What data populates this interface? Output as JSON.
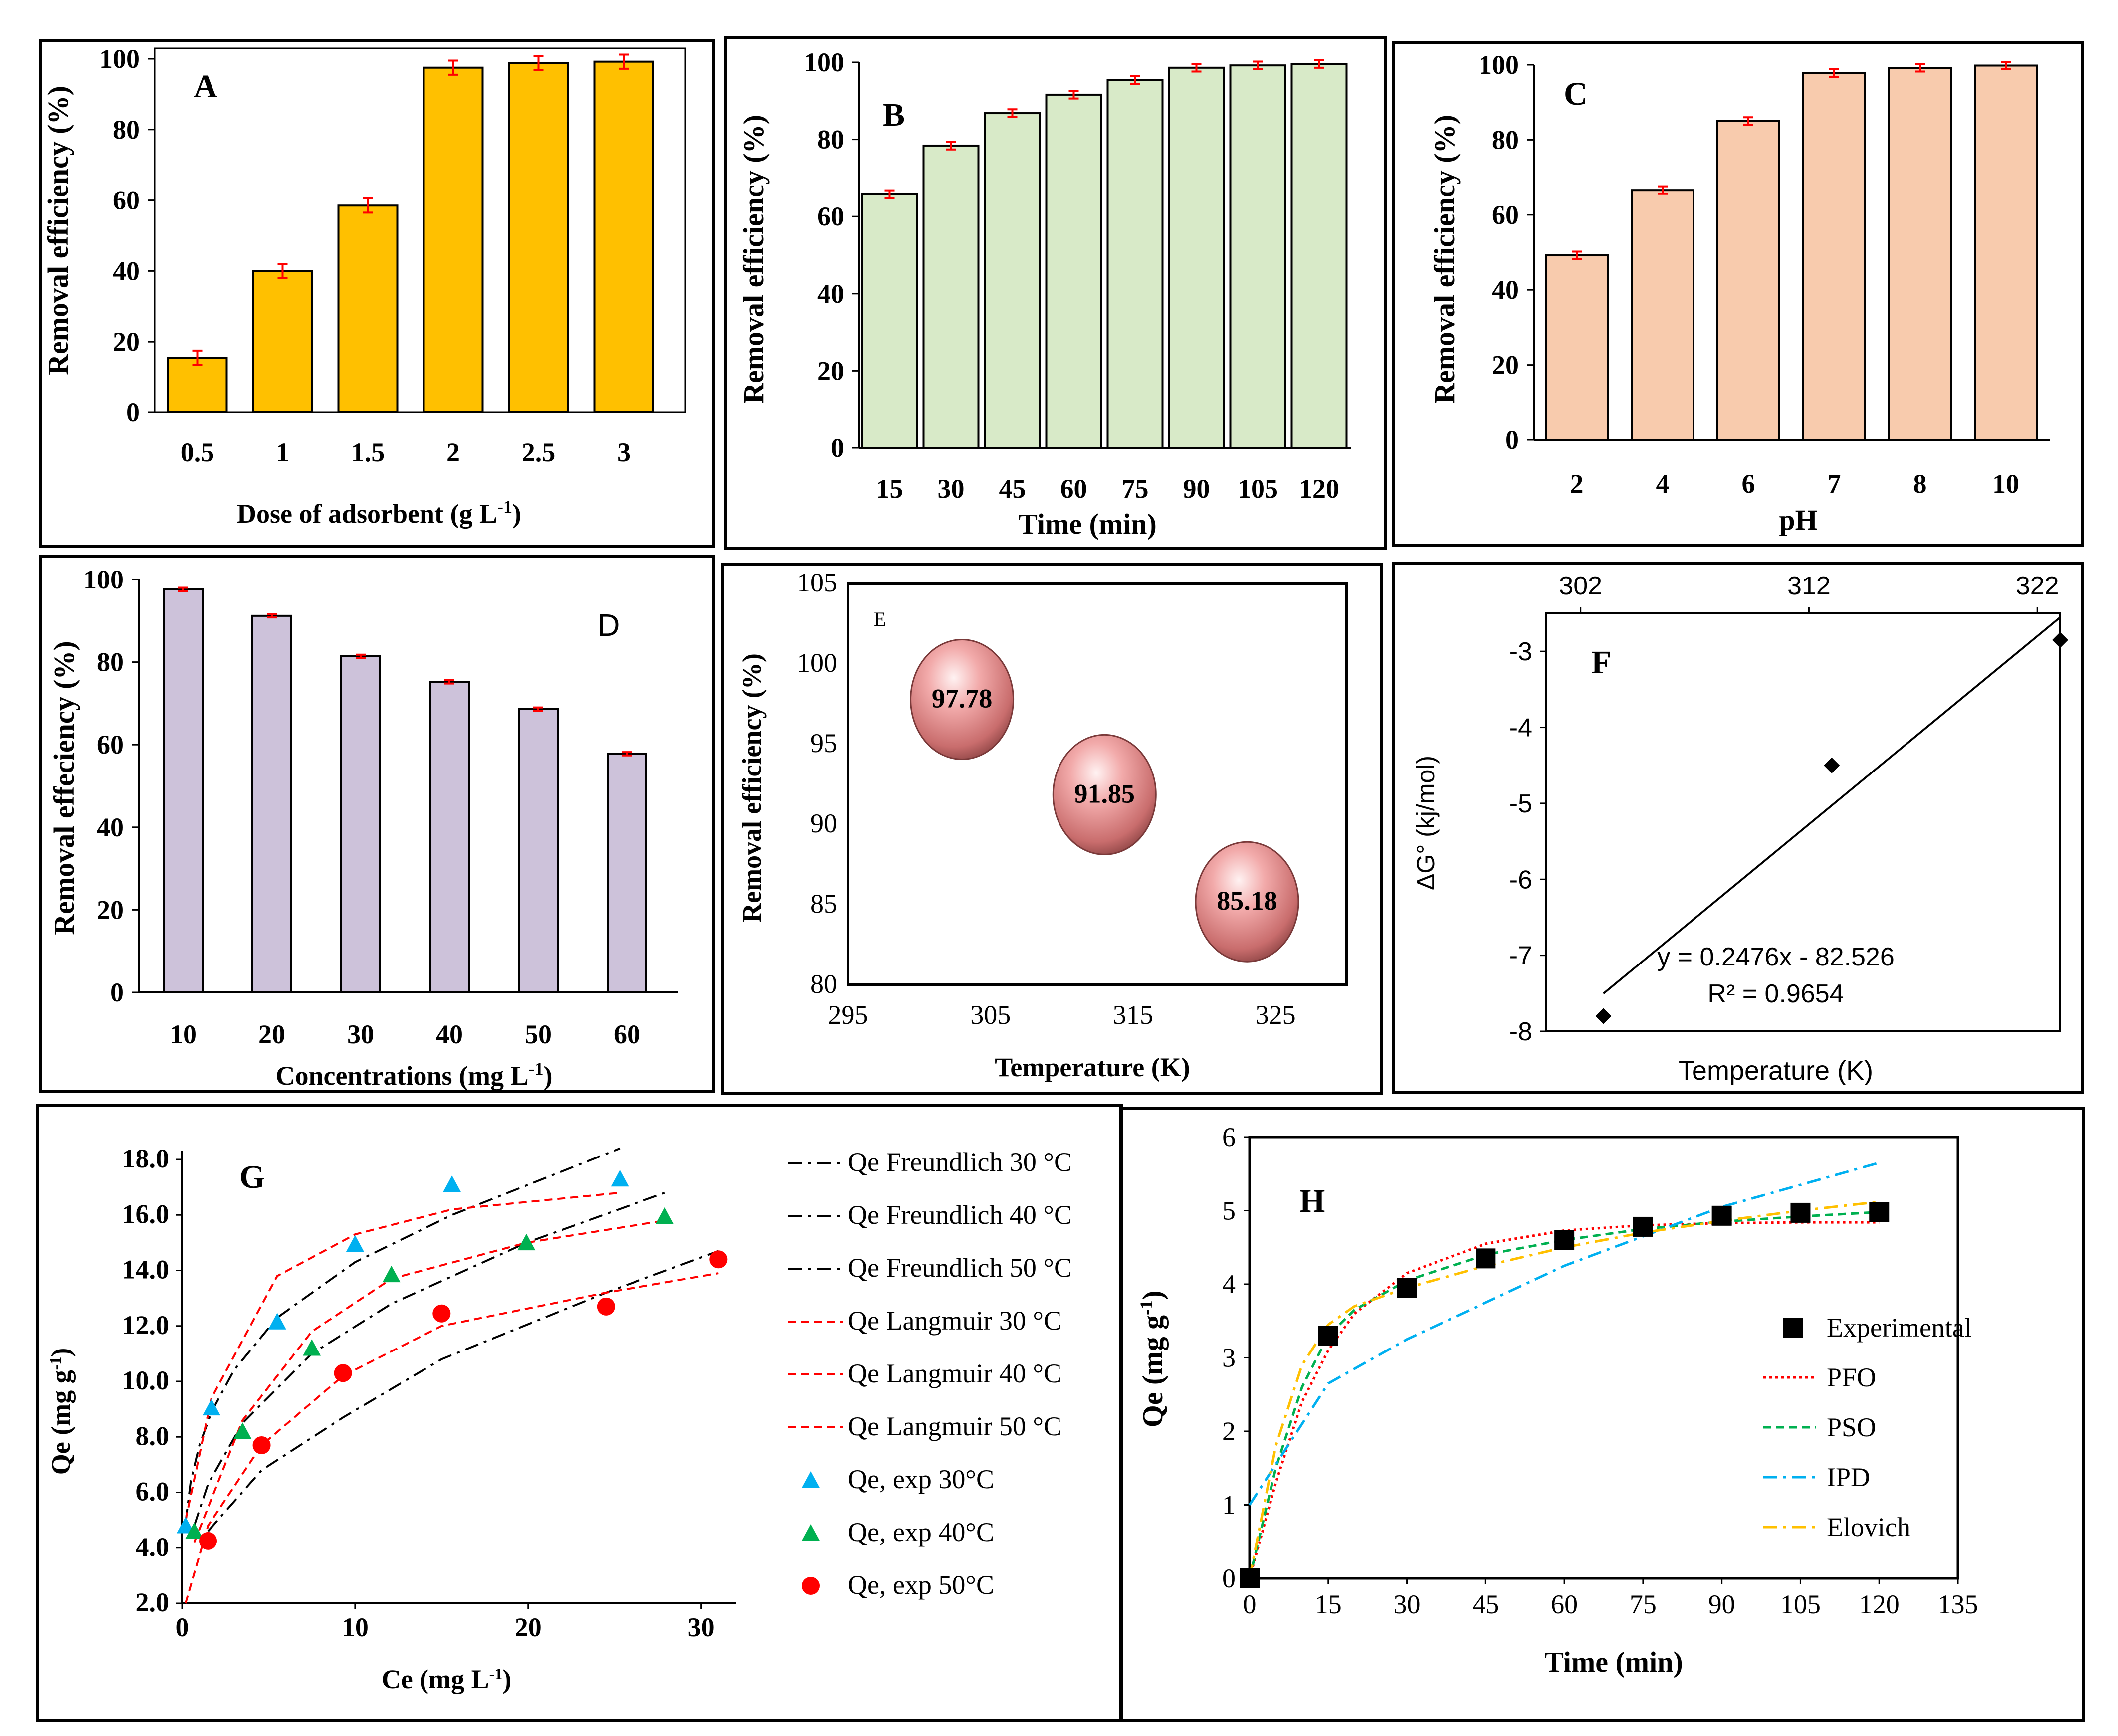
{
  "chart_data": [
    {
      "panel": "A",
      "type": "bar",
      "categories": [
        "0.5",
        "1",
        "1.5",
        "2",
        "2.5",
        "3"
      ],
      "values": [
        15.5,
        40,
        58.5,
        97.5,
        98.8,
        99.2
      ],
      "errors": [
        2,
        2,
        2,
        2,
        2,
        2
      ],
      "xlabel": "Dose of adsorbent (g L",
      "xlabel_sup": "-1",
      "xlabel_end": ")",
      "ylabel": "Removal efficiency (%)",
      "ylim": [
        0,
        100
      ],
      "yticks": [
        "0",
        "20",
        "40",
        "60",
        "80",
        "100"
      ],
      "color": "#FFC000"
    },
    {
      "panel": "B",
      "type": "bar",
      "categories": [
        "15",
        "30",
        "45",
        "60",
        "75",
        "90",
        "105",
        "120"
      ],
      "values": [
        65.8,
        78.4,
        86.8,
        91.6,
        95.4,
        98.6,
        99.2,
        99.6
      ],
      "errors": [
        1,
        1,
        1,
        1,
        1,
        1,
        1,
        1
      ],
      "xlabel": "Time (min)",
      "ylabel": "Removal efficiency (%)",
      "ylim": [
        0,
        100
      ],
      "yticks": [
        "0",
        "20",
        "40",
        "60",
        "80",
        "100"
      ],
      "color": "#D8EAC8"
    },
    {
      "panel": "C",
      "type": "bar",
      "categories": [
        "2",
        "4",
        "6",
        "7",
        "8",
        "10"
      ],
      "values": [
        49.2,
        66.6,
        85,
        97.8,
        99.2,
        99.8
      ],
      "errors": [
        1,
        1,
        1,
        1,
        1,
        1
      ],
      "xlabel": "pH",
      "ylabel": "Removal efficiency (%)",
      "ylim": [
        0,
        100
      ],
      "yticks": [
        "0",
        "20",
        "40",
        "60",
        "80",
        "100"
      ],
      "color": "#F8CBAD"
    },
    {
      "panel": "D",
      "type": "bar",
      "categories": [
        "10",
        "20",
        "30",
        "40",
        "50",
        "60"
      ],
      "values": [
        97.6,
        91.2,
        81.4,
        75.2,
        68.6,
        57.8
      ],
      "errors": [
        0.4,
        0.4,
        0.4,
        0.4,
        0.4,
        0.4
      ],
      "xlabel": "Concentrations (mg L",
      "xlabel_sup": "-1",
      "xlabel_end": ")",
      "ylabel": "Removal effeciency (%)",
      "ylim": [
        0,
        100
      ],
      "yticks": [
        "0",
        "20",
        "40",
        "60",
        "80",
        "100"
      ],
      "color": "#CDC2DA"
    },
    {
      "panel": "E",
      "type": "scatter",
      "points": [
        {
          "x": 303,
          "y": 97.78,
          "label": "97.78"
        },
        {
          "x": 313,
          "y": 91.85,
          "label": "91.85"
        },
        {
          "x": 323,
          "y": 85.18,
          "label": "85.18"
        }
      ],
      "xlabel": "Temperature (K)",
      "ylabel": "Removal efficiency (%)",
      "xlim": [
        295,
        330
      ],
      "ylim": [
        80,
        105
      ],
      "xticks": [
        "295",
        "305",
        "315",
        "325"
      ],
      "yticks": [
        "80",
        "85",
        "90",
        "95",
        "100",
        "105"
      ],
      "color": "#E8A3A3"
    },
    {
      "panel": "F",
      "type": "scatter",
      "points": [
        {
          "x": 303,
          "y": -7.8
        },
        {
          "x": 313,
          "y": -4.5
        },
        {
          "x": 323,
          "y": -2.85
        }
      ],
      "trendline": {
        "slope": 0.2476,
        "intercept": -82.526
      },
      "equation": "y = 0.2476x - 82.526",
      "r2": "R² = 0.9654",
      "xlabel": "Temperature (K)",
      "ylabel": "ΔG° (kj/mol)",
      "xlim": [
        300.5,
        323
      ],
      "ylim": [
        -8,
        -2.5
      ],
      "xticks": [
        "302",
        "312",
        "322"
      ],
      "yticks": [
        "-8",
        "-7",
        "-6",
        "-5",
        "-4",
        "-3"
      ],
      "xaxis_position": "top"
    },
    {
      "panel": "G",
      "type": "line",
      "xlabel": "Ce (mg L",
      "xlabel_sup": "-1",
      "xlabel_end": ")",
      "ylabel": "Qe (mg g",
      "ylabel_sup": "-1",
      "ylabel_end": ")",
      "xlim": [
        0,
        32
      ],
      "ylim": [
        2,
        18
      ],
      "xticks": [
        "0",
        "10",
        "20",
        "30"
      ],
      "yticks": [
        "2.0",
        "4.0",
        "6.0",
        "8.0",
        "10.0",
        "12.0",
        "14.0",
        "16.0",
        "18.0"
      ],
      "series": [
        {
          "name": "Qe Freundlich 30 °C",
          "style": "dashdot",
          "color": "#000000",
          "x": [
            0.2,
            0.5,
            1,
            1.7,
            3,
            5.5,
            10,
            15.6,
            25.3
          ],
          "y": [
            4.9,
            6.4,
            7.7,
            8.9,
            10.4,
            12.3,
            14.3,
            16,
            18.4
          ]
        },
        {
          "name": "Qe Freundlich 40 °C",
          "style": "dashdot",
          "color": "#000000",
          "x": [
            0.7,
            1.5,
            3.5,
            7.5,
            12.1,
            19.9,
            27.9
          ],
          "y": [
            4.8,
            6.3,
            8.5,
            11,
            12.8,
            15,
            16.8
          ]
        },
        {
          "name": "Qe Freundlich 50 °C",
          "style": "dashdot",
          "color": "#000000",
          "x": [
            1.5,
            4.6,
            9.3,
            15,
            24.5,
            31
          ],
          "y": [
            4.6,
            6.8,
            8.7,
            10.8,
            13.2,
            14.7
          ]
        },
        {
          "name": "Qe Langmuir 30 °C",
          "style": "dashed",
          "color": "#FF0000",
          "x": [
            0.2,
            1.7,
            5.5,
            10,
            15.6,
            25.3
          ],
          "y": [
            5,
            9.4,
            13.8,
            15.3,
            16.2,
            16.8
          ]
        },
        {
          "name": "Qe Langmuir 40 °C",
          "style": "dashed",
          "color": "#FF0000",
          "x": [
            0.7,
            3.5,
            7.5,
            12.1,
            19.9,
            27.9
          ],
          "y": [
            4.2,
            8.6,
            11.8,
            13.7,
            15,
            15.8
          ]
        },
        {
          "name": "Qe Langmuir 50 °C",
          "style": "dashed",
          "color": "#FF0000",
          "x": [
            0.2,
            1.5,
            4.6,
            9.3,
            15,
            24.5,
            31
          ],
          "y": [
            2,
            4.8,
            7.7,
            10.2,
            12,
            13.2,
            13.9
          ]
        },
        {
          "name": "Qe, exp 30°C",
          "style": "marker",
          "marker": "triangle",
          "color": "#00B0F0",
          "x": [
            0.2,
            1.7,
            5.5,
            10,
            15.6,
            25.3
          ],
          "y": [
            4.8,
            9.05,
            12.15,
            14.95,
            17.1,
            17.3
          ]
        },
        {
          "name": "Qe, exp 40°C",
          "style": "marker",
          "marker": "triangle",
          "color": "#00B050",
          "x": [
            0.7,
            3.5,
            7.5,
            12.1,
            19.9,
            27.9
          ],
          "y": [
            4.6,
            8.2,
            11.2,
            13.85,
            15,
            15.95
          ]
        },
        {
          "name": "Qe, exp 50°C",
          "style": "marker",
          "marker": "circle",
          "color": "#FF0000",
          "x": [
            1.5,
            4.6,
            9.3,
            15,
            24.5,
            31
          ],
          "y": [
            4.25,
            7.7,
            10.3,
            12.45,
            12.7,
            14.4
          ]
        }
      ]
    },
    {
      "panel": "H",
      "type": "line",
      "xlabel": "Time (min)",
      "ylabel": "Qe (mg g",
      "ylabel_sup": "-1",
      "ylabel_end": ")",
      "xlim": [
        0,
        135
      ],
      "ylim": [
        0,
        6
      ],
      "xticks": [
        "0",
        "15",
        "30",
        "45",
        "60",
        "75",
        "90",
        "105",
        "120",
        "135"
      ],
      "yticks": [
        "0",
        "1",
        "2",
        "3",
        "4",
        "5",
        "6"
      ],
      "series": [
        {
          "name": "Experimental",
          "style": "marker",
          "marker": "square",
          "color": "#000000",
          "x": [
            0,
            15,
            30,
            45,
            60,
            75,
            90,
            105,
            120
          ],
          "y": [
            0,
            3.3,
            3.95,
            4.35,
            4.6,
            4.78,
            4.93,
            4.97,
            4.98
          ]
        },
        {
          "name": "PFO",
          "style": "dotted",
          "color": "#FF0000",
          "x": [
            0,
            5,
            10,
            15,
            20,
            30,
            45,
            60,
            75,
            90,
            105,
            120
          ],
          "y": [
            0,
            1.3,
            2.4,
            3.1,
            3.6,
            4.15,
            4.55,
            4.73,
            4.8,
            4.83,
            4.84,
            4.84
          ]
        },
        {
          "name": "PSO",
          "style": "dashed",
          "color": "#00B050",
          "x": [
            0,
            5,
            10,
            15,
            20,
            30,
            45,
            60,
            75,
            90,
            105,
            120
          ],
          "y": [
            0,
            1.5,
            2.6,
            3.3,
            3.65,
            4.05,
            4.4,
            4.6,
            4.75,
            4.85,
            4.92,
            4.98
          ]
        },
        {
          "name": "IPD",
          "style": "dashdot",
          "color": "#00B0F0",
          "x": [
            0,
            15,
            30,
            45,
            60,
            75,
            90,
            105,
            120
          ],
          "y": [
            1.0,
            2.65,
            3.25,
            3.75,
            4.25,
            4.65,
            5.05,
            5.35,
            5.65
          ]
        },
        {
          "name": "Elovich",
          "style": "dashdot",
          "color": "#FFC000",
          "x": [
            0,
            5,
            10,
            15,
            20,
            30,
            45,
            60,
            75,
            90,
            105,
            120
          ],
          "y": [
            0,
            1.8,
            2.9,
            3.45,
            3.7,
            3.95,
            4.25,
            4.5,
            4.7,
            4.86,
            5.0,
            5.12
          ]
        }
      ]
    }
  ]
}
